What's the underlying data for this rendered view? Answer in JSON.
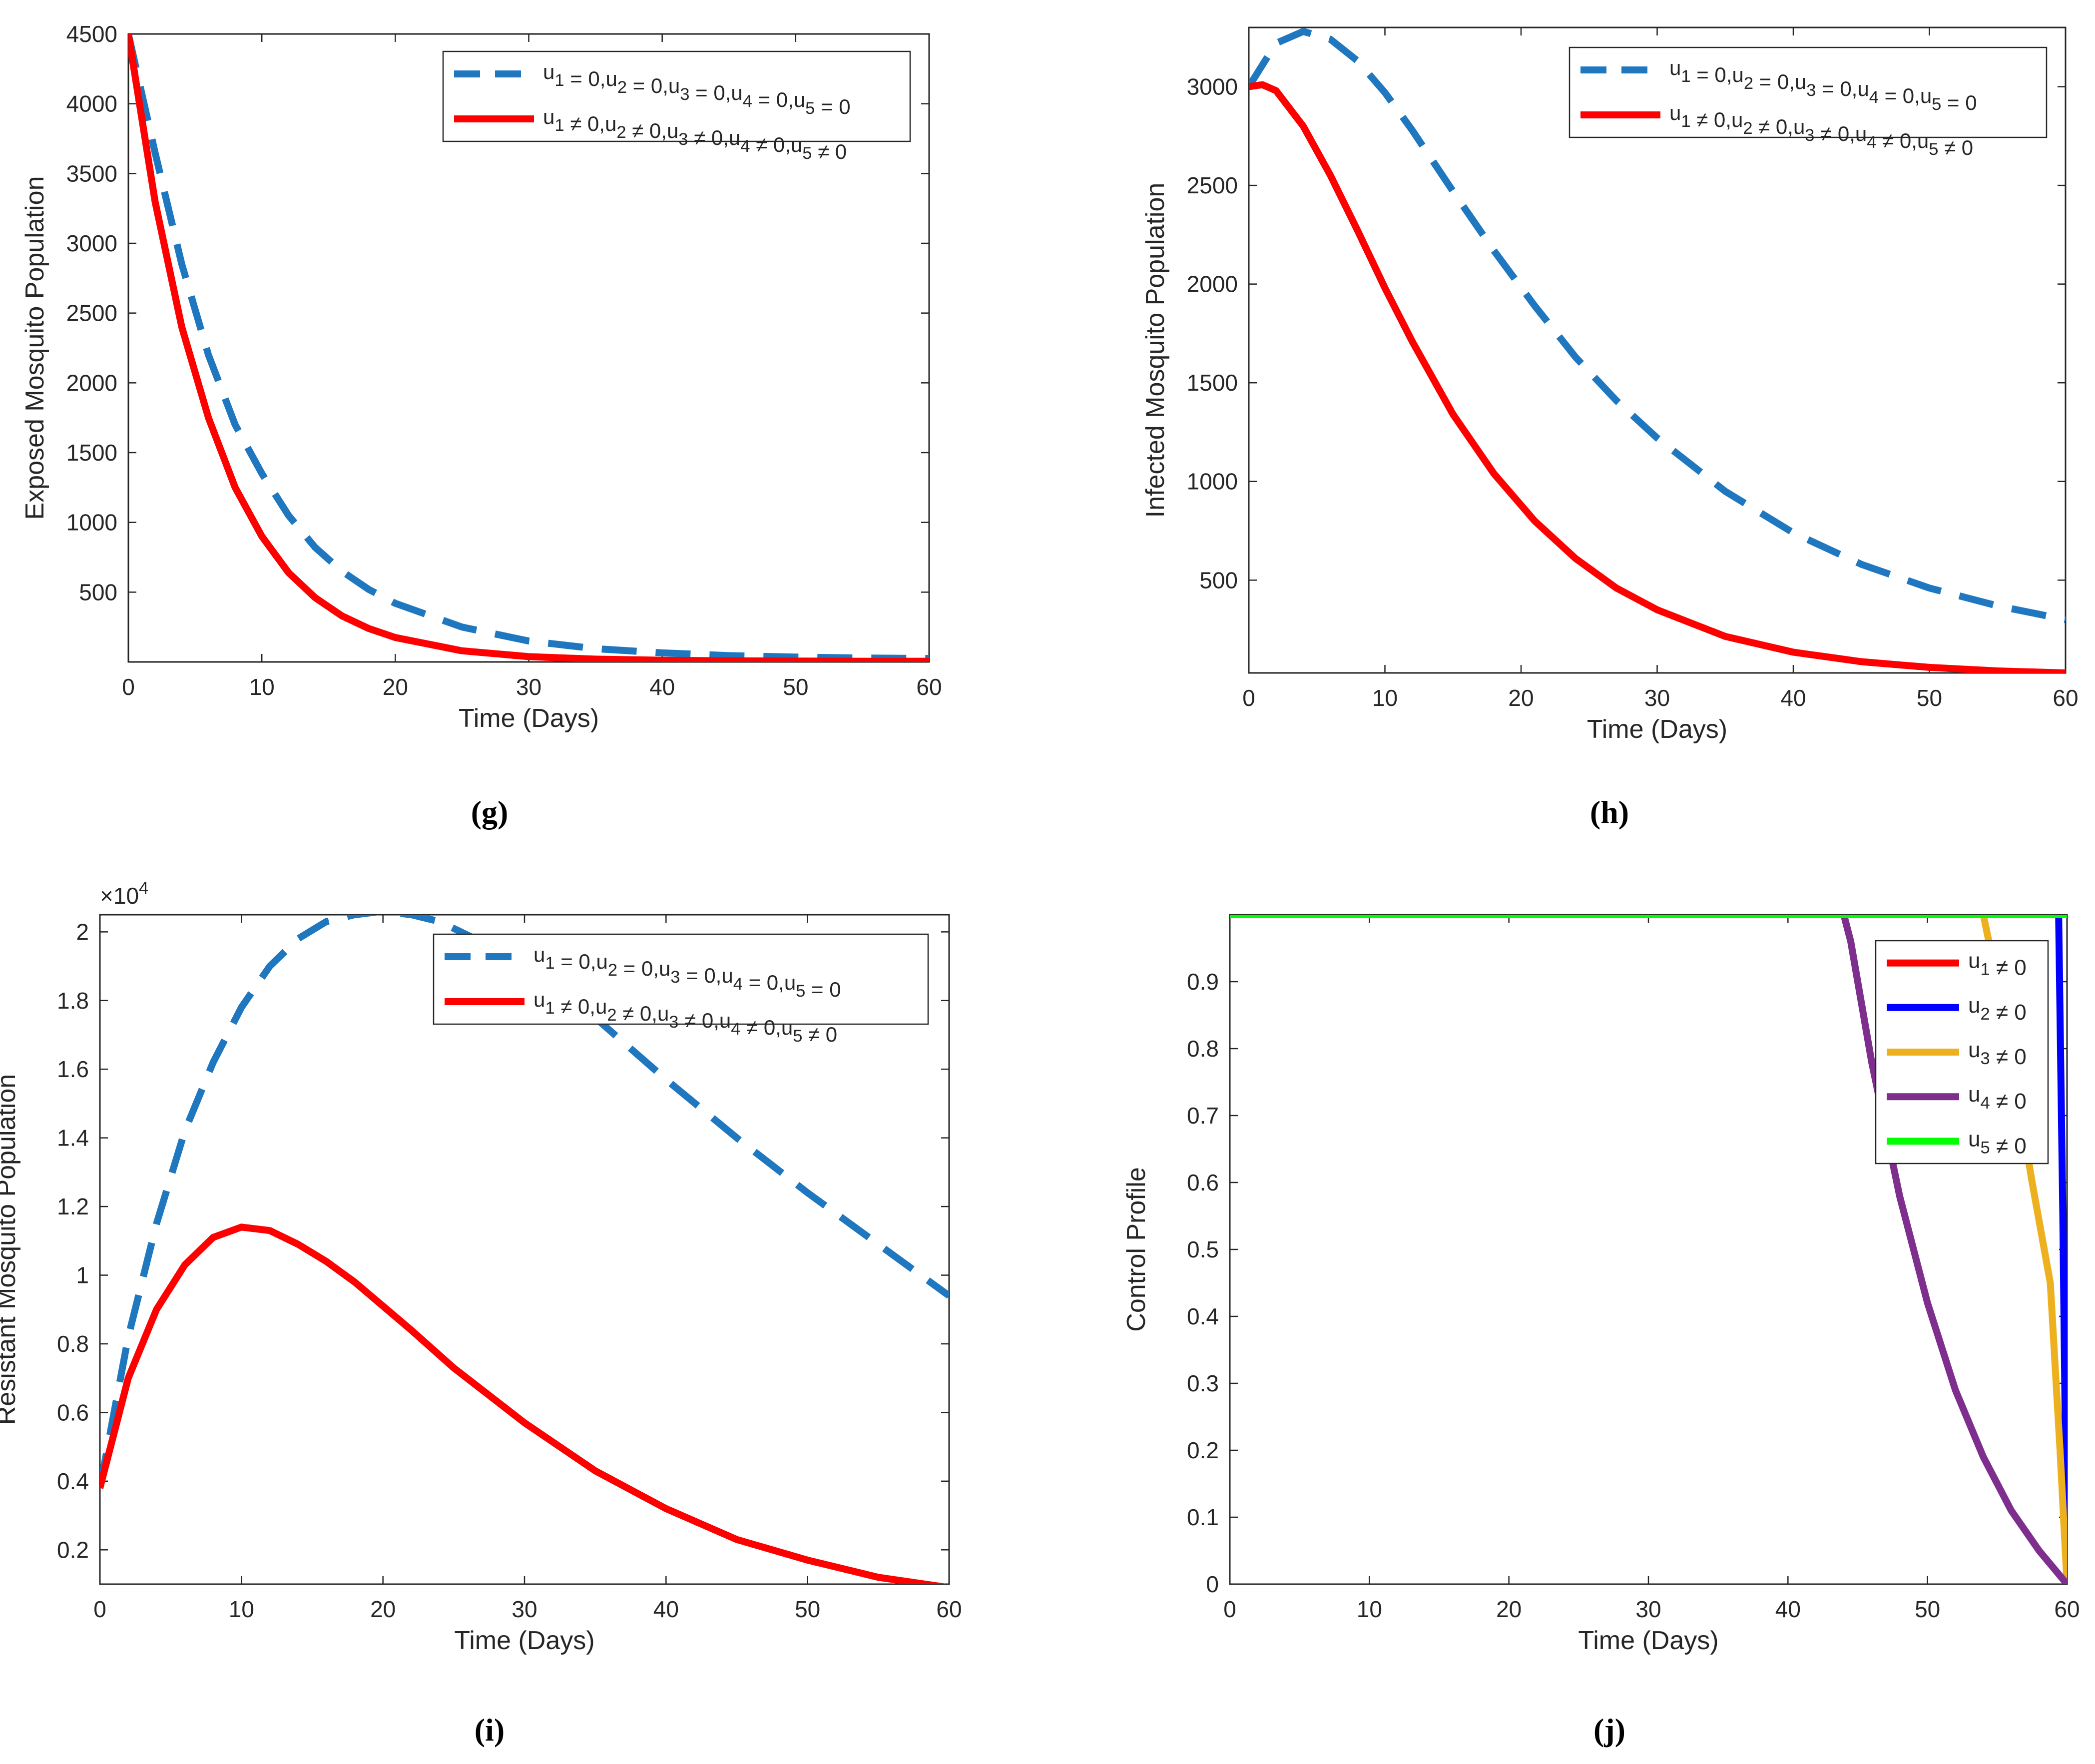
{
  "figure": {
    "panel_labels": [
      "(g)",
      "(h)",
      "(i)",
      "(j)"
    ]
  },
  "colors": {
    "no_control": "#1f77c0",
    "with_control": "#ff0000",
    "u1": "#ff0000",
    "u2": "#0000ff",
    "u3": "#edb120",
    "u4": "#7e2f8e",
    "u5": "#00ff00"
  },
  "chart_data": [
    {
      "id": "g",
      "type": "line",
      "xlabel": "Time (Days)",
      "ylabel": "Exposed Mosquito Population",
      "xlim": [
        0,
        60
      ],
      "ylim": [
        0,
        4500
      ],
      "xticks": [
        0,
        10,
        20,
        30,
        40,
        50,
        60
      ],
      "yticks": [
        500,
        1000,
        1500,
        2000,
        2500,
        3000,
        3500,
        4000,
        4500
      ],
      "legend_position": "top-right",
      "series": [
        {
          "name": "u1 = 0,u2 = 0,u3 = 0,u4 = 0,u5 = 0",
          "style": "dashed",
          "color_key": "no_control",
          "x": [
            0,
            2,
            4,
            6,
            8,
            10,
            12,
            14,
            16,
            18,
            20,
            25,
            30,
            35,
            40,
            45,
            50,
            55,
            60
          ],
          "y": [
            4500,
            3650,
            2850,
            2200,
            1700,
            1350,
            1050,
            820,
            650,
            520,
            420,
            250,
            150,
            95,
            65,
            45,
            35,
            28,
            25
          ]
        },
        {
          "name": "u1 ≠ 0,u2 ≠ 0,u3 ≠ 0,u4 ≠ 0,u5 ≠ 0",
          "style": "solid",
          "color_key": "with_control",
          "x": [
            0,
            2,
            4,
            6,
            8,
            10,
            12,
            14,
            16,
            18,
            20,
            25,
            30,
            35,
            40,
            45,
            50,
            55,
            60
          ],
          "y": [
            4500,
            3300,
            2400,
            1750,
            1250,
            900,
            640,
            460,
            330,
            240,
            175,
            80,
            38,
            20,
            12,
            8,
            6,
            5,
            5
          ]
        }
      ]
    },
    {
      "id": "h",
      "type": "line",
      "xlabel": "Time (Days)",
      "ylabel": "Infected Mosquito Population",
      "xlim": [
        0,
        60
      ],
      "ylim": [
        30,
        3300
      ],
      "xticks": [
        0,
        10,
        20,
        30,
        40,
        50,
        60
      ],
      "yticks": [
        500,
        1000,
        1500,
        2000,
        2500,
        3000
      ],
      "legend_position": "top-right",
      "series": [
        {
          "name": "u1 = 0,u2 = 0,u3 = 0,u4 = 0,u5 = 0",
          "style": "dashed",
          "color_key": "no_control",
          "x": [
            0,
            2,
            4,
            6,
            8,
            10,
            12,
            15,
            18,
            21,
            24,
            27,
            30,
            35,
            40,
            45,
            50,
            55,
            60
          ],
          "y": [
            3000,
            3220,
            3280,
            3240,
            3130,
            2970,
            2780,
            2470,
            2170,
            1890,
            1630,
            1410,
            1220,
            950,
            740,
            580,
            460,
            370,
            300
          ]
        },
        {
          "name": "u1 ≠ 0,u2 ≠ 0,u3 ≠ 0,u4 ≠ 0,u5 ≠ 0",
          "style": "solid",
          "color_key": "with_control",
          "x": [
            0,
            1,
            2,
            4,
            6,
            8,
            10,
            12,
            15,
            18,
            21,
            24,
            27,
            30,
            35,
            40,
            45,
            50,
            55,
            60
          ],
          "y": [
            3000,
            3010,
            2980,
            2800,
            2550,
            2270,
            1980,
            1710,
            1340,
            1040,
            800,
            610,
            460,
            350,
            215,
            135,
            87,
            58,
            40,
            30
          ]
        }
      ]
    },
    {
      "id": "i",
      "type": "line",
      "xlabel": "Time (Days)",
      "ylabel": "Resistant Mosquito Population",
      "exponent_label": "×10",
      "exponent_power": "4",
      "xlim": [
        0,
        60
      ],
      "ylim": [
        0.1,
        2.05
      ],
      "xticks": [
        0,
        10,
        20,
        30,
        40,
        50,
        60
      ],
      "yticks": [
        0.2,
        0.4,
        0.6,
        0.8,
        1,
        1.2,
        1.4,
        1.6,
        1.8,
        2
      ],
      "ytick_labels": [
        "0.2",
        "0.4",
        "0.6",
        "0.8",
        "1",
        "1.2",
        "1.4",
        "1.6",
        "1.8",
        "2"
      ],
      "legend_position": "top-right",
      "series": [
        {
          "name": "u1 = 0,u2 = 0,u3 = 0,u4 = 0,u5 = 0",
          "style": "dashed",
          "color_key": "no_control",
          "x": [
            0,
            2,
            4,
            6,
            8,
            10,
            12,
            14,
            16,
            18,
            20,
            22,
            24,
            26,
            28,
            30,
            35,
            40,
            45,
            50,
            55,
            60
          ],
          "y": [
            0.38,
            0.82,
            1.15,
            1.42,
            1.62,
            1.78,
            1.9,
            1.98,
            2.03,
            2.05,
            2.06,
            2.05,
            2.03,
            1.99,
            1.95,
            1.9,
            1.75,
            1.57,
            1.4,
            1.24,
            1.09,
            0.94
          ]
        },
        {
          "name": "u1 ≠ 0,u2 ≠ 0,u3 ≠ 0,u4 ≠ 0,u5 ≠ 0",
          "style": "solid",
          "color_key": "with_control",
          "x": [
            0,
            2,
            4,
            6,
            8,
            10,
            12,
            14,
            16,
            18,
            20,
            22,
            25,
            30,
            35,
            40,
            45,
            50,
            55,
            60
          ],
          "y": [
            0.38,
            0.7,
            0.9,
            1.03,
            1.11,
            1.14,
            1.13,
            1.09,
            1.04,
            0.98,
            0.91,
            0.84,
            0.73,
            0.57,
            0.43,
            0.32,
            0.23,
            0.17,
            0.12,
            0.09
          ]
        }
      ]
    },
    {
      "id": "j",
      "type": "line",
      "xlabel": "Time (Days)",
      "ylabel": "Control Profile",
      "xlim": [
        0,
        60
      ],
      "ylim": [
        0,
        1
      ],
      "xticks": [
        0,
        10,
        20,
        30,
        40,
        50,
        60
      ],
      "yticks": [
        0,
        0.1,
        0.2,
        0.3,
        0.4,
        0.5,
        0.6,
        0.7,
        0.8,
        0.9
      ],
      "legend_position": "top-right",
      "series": [
        {
          "name": "u1 ≠ 0",
          "color_key": "u1",
          "x": [
            0,
            60
          ],
          "y": [
            1,
            1
          ]
        },
        {
          "name": "u2 ≠ 0",
          "color_key": "u2",
          "x": [
            0,
            59.4,
            59.7,
            60
          ],
          "y": [
            1,
            1,
            0.55,
            0
          ]
        },
        {
          "name": "u3 ≠ 0",
          "color_key": "u3",
          "x": [
            0,
            54,
            55.5,
            57.5,
            58.8,
            59.5,
            60
          ],
          "y": [
            1,
            1,
            0.85,
            0.6,
            0.45,
            0.2,
            0
          ]
        },
        {
          "name": "u4 ≠ 0",
          "color_key": "u4",
          "x": [
            0,
            44,
            44.5,
            46,
            48,
            50,
            52,
            54,
            56,
            58,
            60
          ],
          "y": [
            1,
            1,
            0.96,
            0.78,
            0.58,
            0.42,
            0.29,
            0.19,
            0.11,
            0.05,
            0
          ]
        },
        {
          "name": "u5 ≠ 0",
          "color_key": "u5",
          "x": [
            0,
            60
          ],
          "y": [
            1,
            1
          ]
        }
      ]
    }
  ]
}
